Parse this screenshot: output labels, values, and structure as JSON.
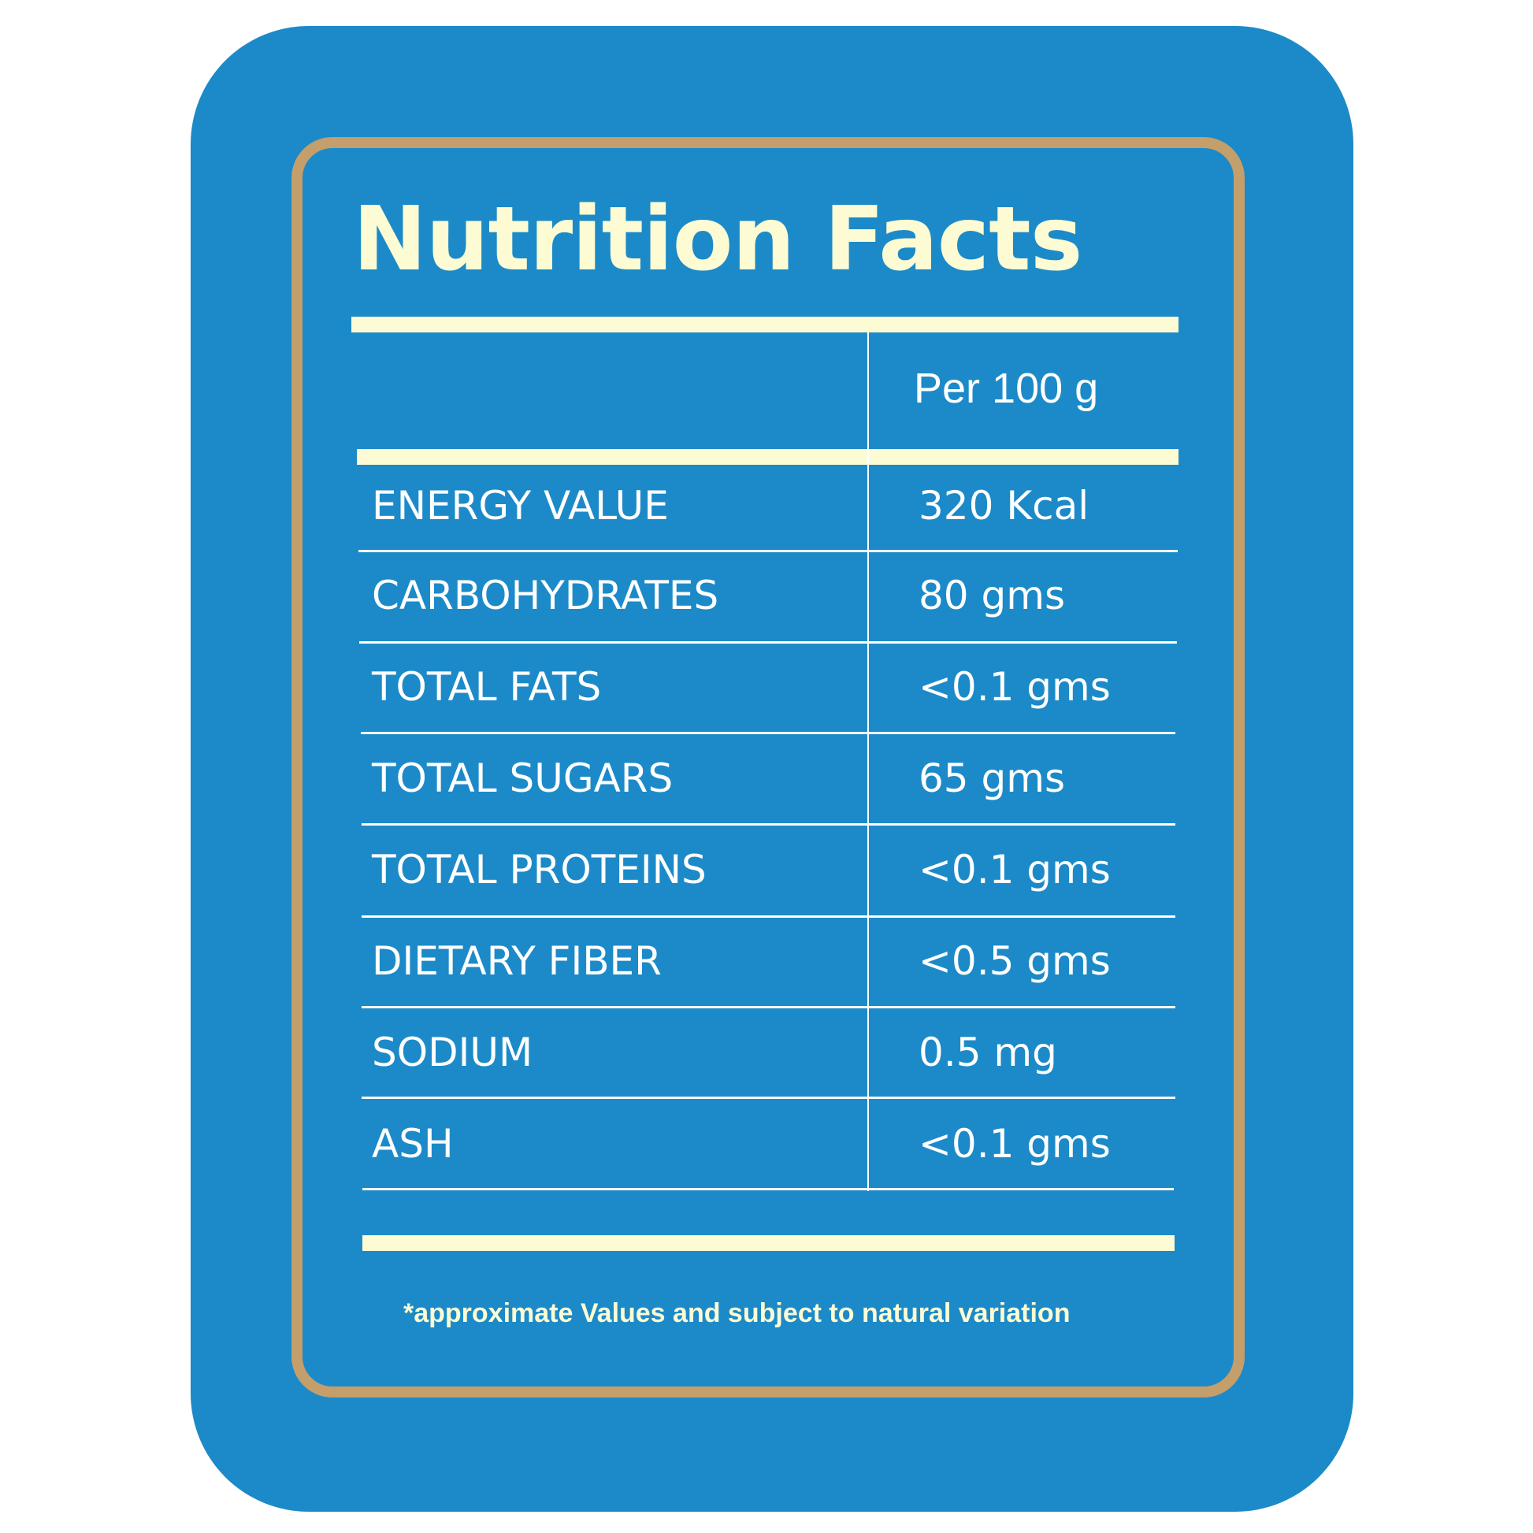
{
  "label": {
    "title": "Nutrition Facts",
    "column_header": "Per 100 g",
    "rows": [
      {
        "name": "ENERGY VALUE",
        "value": "320 Kcal"
      },
      {
        "name": "CARBOHYDRATES",
        "value": "80 gms"
      },
      {
        "name": "TOTAL FATS",
        "value": "<0.1 gms"
      },
      {
        "name": "TOTAL SUGARS",
        "value": "65 gms"
      },
      {
        "name": "TOTAL PROTEINS",
        "value": "<0.1 gms"
      },
      {
        "name": "DIETARY FIBER",
        "value": "<0.5 gms"
      },
      {
        "name": "SODIUM",
        "value": "0.5 mg"
      },
      {
        "name": "ASH",
        "value": "<0.1 gms"
      }
    ],
    "footnote": "*approximate Values and subject to natural variation"
  },
  "colors": {
    "background": "#1c8ac8",
    "frame": "#c49e6b",
    "accent_text": "#fdfbd3",
    "table_text": "#ffffff"
  }
}
